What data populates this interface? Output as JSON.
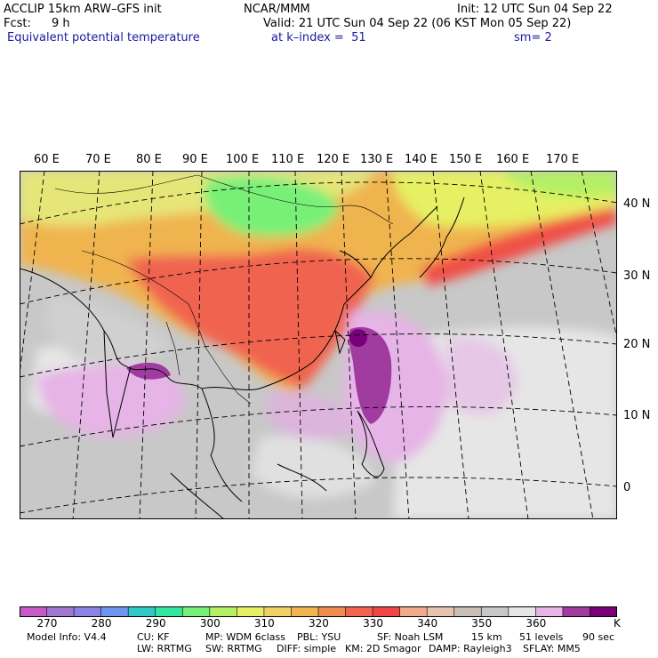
{
  "header": {
    "model": "ACCLIP 15km ARW–GFS init",
    "org": "NCAR/MMM",
    "init": "Init: 12 UTC Sun 04 Sep 22",
    "fcst_label": "Fcst:",
    "fcst_value": "9 h",
    "valid": "Valid: 21 UTC Sun 04 Sep 22 (06 KST Mon 05 Sep 22)",
    "field": "Equivalent potential temperature",
    "level": "at k–index =  51",
    "smoothing": "sm= 2"
  },
  "map": {
    "lon_labels": [
      "60 E",
      "70 E",
      "80 E",
      "90 E",
      "100 E",
      "110 E",
      "120 E",
      "130 E",
      "140 E",
      "150 E",
      "160 E",
      "170 E"
    ],
    "lat_labels": [
      "40 N",
      "30 N",
      "20 N",
      "10 N",
      "0"
    ]
  },
  "colorbar": {
    "colors": [
      "#c85ac8",
      "#a078d2",
      "#8c82e6",
      "#6e96f0",
      "#32c8c8",
      "#32e6a0",
      "#78f078",
      "#b4f064",
      "#e6f064",
      "#f0d264",
      "#f0b450",
      "#f08c50",
      "#f06450",
      "#f04646",
      "#f0aa8c",
      "#e6c3af",
      "#c8beb4",
      "#c8c8c8",
      "#e6e6e6",
      "#e6b4e6",
      "#a03ca0",
      "#780078"
    ],
    "tick_labels": [
      "270",
      "280",
      "290",
      "300",
      "310",
      "320",
      "330",
      "340",
      "350",
      "360"
    ],
    "unit": "K"
  },
  "footer": {
    "line1": [
      "Model Info: V4.4",
      "CU: KF",
      "MP: WDM 6class",
      "PBL: YSU",
      "SF: Noah LSM",
      "15 km",
      "51 levels",
      "90 sec"
    ],
    "line2": [
      "LW: RRTMG",
      "SW: RRTMG",
      "DIFF: simple",
      "KM: 2D Smagor",
      "DAMP: Rayleigh3",
      "SFLAY: MM5"
    ]
  }
}
